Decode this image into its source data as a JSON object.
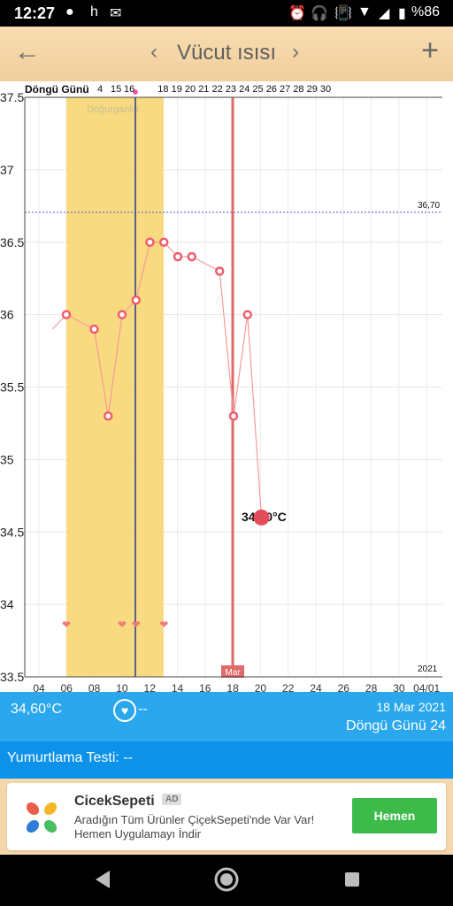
{
  "statusbar": {
    "time": "12:27",
    "app_icons": [
      "spotify-icon",
      "h",
      "gmail-icon"
    ],
    "battery": "%86"
  },
  "appbar": {
    "title": "Vücut ısısı"
  },
  "chart": {
    "cycle_label": "Döngü Günü",
    "cycle_days": [
      "4",
      "15",
      "16",
      "",
      "18",
      "19",
      "20",
      "21",
      "22",
      "23",
      "24",
      "25",
      "26",
      "27",
      "28",
      "29",
      "30"
    ],
    "fertile_label": "Doğurganlık",
    "y_ticks": [
      "37.5",
      "37",
      "36.5",
      "36",
      "35.5",
      "35",
      "34.5",
      "34",
      "33.5"
    ],
    "x_ticks": [
      "04",
      "06",
      "08",
      "10",
      "12",
      "14",
      "16",
      "18",
      "20",
      "22",
      "24",
      "26",
      "28",
      "30",
      "04/01"
    ],
    "month_label": "Mar",
    "year_label": "2021",
    "threshold_label": "36,70",
    "selected_label": "34,60°C"
  },
  "chart_data": {
    "type": "line",
    "x": [
      "03-03",
      "03-04",
      "03-06",
      "03-07",
      "03-08",
      "03-09",
      "03-10",
      "03-11",
      "03-12",
      "03-13",
      "03-15",
      "03-16",
      "03-17",
      "03-18"
    ],
    "series": [
      {
        "values": [
          35.9,
          36.0,
          35.9,
          35.3,
          36.0,
          36.1,
          36.5,
          36.5,
          36.4,
          36.4,
          36.3,
          35.3,
          36.0,
          34.6
        ]
      }
    ],
    "ylim": [
      33.5,
      37.5
    ],
    "threshold": 36.7,
    "fertile_window": [
      "03-06",
      "03-12"
    ],
    "ovulation_marker": "03-11",
    "selected": {
      "x": "03-18",
      "y": 34.6
    },
    "heart_markers": [
      "03-04",
      "03-08",
      "03-09",
      "03-11"
    ]
  },
  "info": {
    "temp": "34,60°C",
    "mood": "--",
    "date": "18 Mar 2021",
    "cycle_day": "Döngü Günü 24"
  },
  "ovulation_test": {
    "label": "Yumurtlama Testi: --"
  },
  "ad": {
    "brand": "CicekSepeti",
    "badge": "AD",
    "description": "Aradığın Tüm Ürünler ÇiçekSepeti'nde Var Var! Hemen Uygulamayı İndir",
    "cta": "Hemen"
  },
  "colors": {
    "accent": "#2aa7ed",
    "fertile": "#f7d56b",
    "line": "#f59a9a",
    "selected": "#e34d5a"
  }
}
